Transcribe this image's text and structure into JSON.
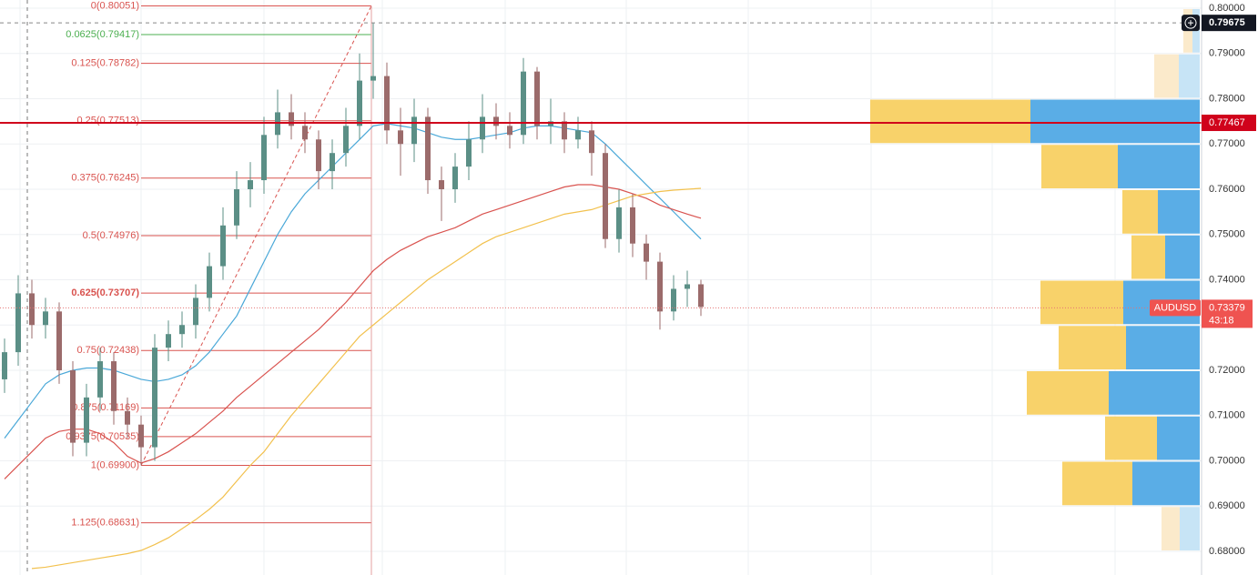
{
  "chart_data": {
    "type": "candlestick",
    "symbol": "AUDUSD",
    "ylim": [
      0.68,
      0.8
    ],
    "yticks": [
      {
        "value": 0.68,
        "label": "0.68000"
      },
      {
        "value": 0.69,
        "label": "0.69000"
      },
      {
        "value": 0.7,
        "label": "0.70000"
      },
      {
        "value": 0.71,
        "label": "0.71000"
      },
      {
        "value": 0.72,
        "label": "0.72000"
      },
      {
        "value": 0.73,
        "label": "0.73000"
      },
      {
        "value": 0.74,
        "label": "0.74000"
      },
      {
        "value": 0.75,
        "label": "0.75000"
      },
      {
        "value": 0.76,
        "label": "0.76000"
      },
      {
        "value": 0.77,
        "label": "0.77000"
      },
      {
        "value": 0.78,
        "label": "0.78000"
      },
      {
        "value": 0.79,
        "label": "0.79000"
      },
      {
        "value": 0.8,
        "label": "0.80000"
      }
    ],
    "grid": true,
    "up_color": "#5b8f86",
    "down_color": "#9b6b6b",
    "open": [
      0.718,
      0.724,
      0.737,
      0.73,
      0.733,
      0.72,
      0.704,
      0.714,
      0.722,
      0.711,
      0.708,
      0.703,
      0.725,
      0.728,
      0.73,
      0.736,
      0.743,
      0.752,
      0.76,
      0.762,
      0.772,
      0.777,
      0.774,
      0.771,
      0.764,
      0.768,
      0.774,
      0.784,
      0.785,
      0.773,
      0.77,
      0.776,
      0.762,
      0.76,
      0.765,
      0.771,
      0.776,
      0.774,
      0.772,
      0.786,
      0.774,
      0.775,
      0.771,
      0.773,
      0.768,
      0.749,
      0.756,
      0.748,
      0.744,
      0.733,
      0.738,
      0.739
    ],
    "high": [
      0.727,
      0.741,
      0.74,
      0.736,
      0.735,
      0.722,
      0.717,
      0.725,
      0.724,
      0.714,
      0.71,
      0.728,
      0.731,
      0.733,
      0.739,
      0.746,
      0.756,
      0.764,
      0.766,
      0.776,
      0.782,
      0.781,
      0.777,
      0.773,
      0.771,
      0.778,
      0.79,
      0.7967,
      0.788,
      0.778,
      0.78,
      0.778,
      0.765,
      0.768,
      0.775,
      0.781,
      0.779,
      0.777,
      0.789,
      0.787,
      0.78,
      0.777,
      0.776,
      0.775,
      0.77,
      0.76,
      0.759,
      0.75,
      0.746,
      0.741,
      0.742,
      0.74
    ],
    "low": [
      0.715,
      0.721,
      0.727,
      0.727,
      0.717,
      0.701,
      0.701,
      0.711,
      0.708,
      0.705,
      0.699,
      0.7,
      0.722,
      0.725,
      0.727,
      0.733,
      0.74,
      0.749,
      0.756,
      0.759,
      0.769,
      0.771,
      0.768,
      0.76,
      0.76,
      0.765,
      0.771,
      0.78,
      0.77,
      0.763,
      0.766,
      0.759,
      0.753,
      0.757,
      0.762,
      0.768,
      0.771,
      0.769,
      0.77,
      0.771,
      0.77,
      0.768,
      0.769,
      0.763,
      0.747,
      0.746,
      0.745,
      0.74,
      0.729,
      0.731,
      0.734,
      0.732
    ],
    "close": [
      0.724,
      0.737,
      0.73,
      0.733,
      0.72,
      0.704,
      0.714,
      0.722,
      0.711,
      0.708,
      0.703,
      0.725,
      0.728,
      0.73,
      0.736,
      0.743,
      0.752,
      0.76,
      0.762,
      0.772,
      0.777,
      0.774,
      0.771,
      0.764,
      0.768,
      0.774,
      0.784,
      0.785,
      0.773,
      0.77,
      0.776,
      0.762,
      0.76,
      0.765,
      0.771,
      0.776,
      0.774,
      0.772,
      0.786,
      0.774,
      0.775,
      0.771,
      0.773,
      0.768,
      0.749,
      0.756,
      0.748,
      0.744,
      0.733,
      0.738,
      0.739,
      0.734
    ],
    "series": [
      {
        "color": "#4aa8d8",
        "values": [
          0.705,
          0.709,
          0.713,
          0.717,
          0.719,
          0.72,
          0.7205,
          0.7205,
          0.72,
          0.719,
          0.718,
          0.7175,
          0.718,
          0.719,
          0.721,
          0.724,
          0.728,
          0.732,
          0.738,
          0.744,
          0.75,
          0.755,
          0.759,
          0.762,
          0.765,
          0.768,
          0.771,
          0.774,
          0.7745,
          0.774,
          0.7735,
          0.7725,
          0.7715,
          0.771,
          0.771,
          0.7715,
          0.772,
          0.7725,
          0.7735,
          0.774,
          0.774,
          0.7735,
          0.773,
          0.7725,
          0.77,
          0.767,
          0.764,
          0.761,
          0.758,
          0.755,
          0.752,
          0.749
        ]
      },
      {
        "color": "#d9534f",
        "values": [
          0.696,
          0.699,
          0.702,
          0.705,
          0.7065,
          0.707,
          0.707,
          0.706,
          0.704,
          0.701,
          0.6995,
          0.7005,
          0.702,
          0.704,
          0.706,
          0.7085,
          0.711,
          0.714,
          0.7165,
          0.719,
          0.7215,
          0.724,
          0.7265,
          0.729,
          0.732,
          0.735,
          0.7385,
          0.742,
          0.7445,
          0.7465,
          0.748,
          0.7495,
          0.7505,
          0.7515,
          0.753,
          0.7545,
          0.7555,
          0.7565,
          0.7575,
          0.7585,
          0.7595,
          0.7605,
          0.761,
          0.761,
          0.7605,
          0.76,
          0.759,
          0.758,
          0.7565,
          0.7555,
          0.7545,
          0.7536
        ]
      },
      {
        "color": "#f2c14e",
        "values": [
          null,
          null,
          0.6762,
          0.6765,
          0.677,
          0.6775,
          0.678,
          0.6785,
          0.679,
          0.6795,
          0.6802,
          0.6815,
          0.683,
          0.685,
          0.687,
          0.6893,
          0.692,
          0.6955,
          0.699,
          0.702,
          0.706,
          0.71,
          0.7135,
          0.717,
          0.7205,
          0.724,
          0.7275,
          0.73,
          0.7325,
          0.735,
          0.7375,
          0.74,
          0.742,
          0.744,
          0.746,
          0.748,
          0.7495,
          0.7505,
          0.7515,
          0.7525,
          0.7535,
          0.7545,
          0.755,
          0.7555,
          0.7565,
          0.7575,
          0.7585,
          0.759,
          0.7595,
          0.7598,
          0.76,
          0.7602
        ]
      }
    ],
    "fib_levels": [
      {
        "label": "0(0.80051)",
        "value": 0.80051,
        "color": "#d9534f"
      },
      {
        "label": "0.0625(0.79417)",
        "value": 0.79417,
        "color": "#4caf50"
      },
      {
        "label": "0.125(0.78782)",
        "value": 0.78782,
        "color": "#d9534f"
      },
      {
        "label": "0.25(0.77513)",
        "value": 0.77513,
        "color": "#d9534f"
      },
      {
        "label": "0.375(0.76245)",
        "value": 0.76245,
        "color": "#d9534f"
      },
      {
        "label": "0.5(0.74976)",
        "value": 0.74976,
        "color": "#d9534f"
      },
      {
        "label": "0.625(0.73707)",
        "value": 0.73707,
        "color": "#d9534f"
      },
      {
        "label": "0.75(0.72438)",
        "value": 0.72438,
        "color": "#d9534f"
      },
      {
        "label": "0.875(0.71169)",
        "value": 0.71169,
        "color": "#d9534f"
      },
      {
        "label": "0.9375(0.70535)",
        "value": 0.70535,
        "color": "#d9534f"
      },
      {
        "label": "1(0.69900)",
        "value": 0.699,
        "color": "#d9534f"
      },
      {
        "label": "1.125(0.68631)",
        "value": 0.68631,
        "color": "#d9534f"
      }
    ],
    "horizontal_line": {
      "value": 0.77467,
      "color": "#d0021b"
    },
    "crosshair": 0.79675,
    "last_price": 0.73379,
    "countdown": "43:18",
    "profile_colors": [
      "#f8d26a",
      "#5aade6"
    ],
    "profile_faded_colors": [
      "#fbeacb",
      "#c7e4f6"
    ],
    "volume_profile": [
      {
        "low": 0.79,
        "high": 0.8,
        "sell": 10,
        "buy": 8,
        "faded": true
      },
      {
        "low": 0.78,
        "high": 0.79,
        "sell": 27,
        "buy": 23,
        "faded": true
      },
      {
        "low": 0.77,
        "high": 0.78,
        "sell": 176,
        "buy": 186,
        "faded": false
      },
      {
        "low": 0.76,
        "high": 0.77,
        "sell": 84,
        "buy": 90,
        "faded": false
      },
      {
        "low": 0.75,
        "high": 0.76,
        "sell": 39,
        "buy": 46,
        "faded": false
      },
      {
        "low": 0.74,
        "high": 0.75,
        "sell": 37,
        "buy": 38,
        "faded": false
      },
      {
        "low": 0.73,
        "high": 0.74,
        "sell": 91,
        "buy": 84,
        "faded": false
      },
      {
        "low": 0.72,
        "high": 0.73,
        "sell": 74,
        "buy": 81,
        "faded": false
      },
      {
        "low": 0.71,
        "high": 0.72,
        "sell": 90,
        "buy": 100,
        "faded": false
      },
      {
        "low": 0.7,
        "high": 0.71,
        "sell": 57,
        "buy": 47,
        "faded": false
      },
      {
        "low": 0.69,
        "high": 0.7,
        "sell": 77,
        "buy": 74,
        "faded": false
      },
      {
        "low": 0.68,
        "high": 0.69,
        "sell": 20,
        "buy": 22,
        "faded": true
      }
    ]
  }
}
